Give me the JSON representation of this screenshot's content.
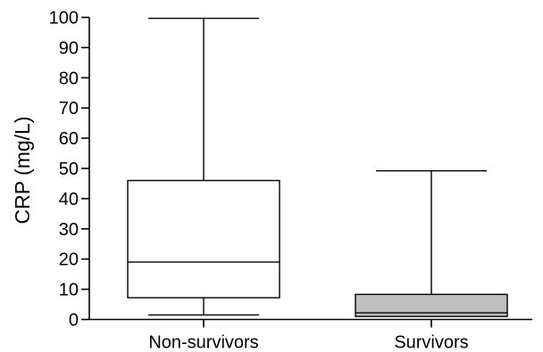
{
  "chart_data": {
    "type": "box",
    "title": "",
    "xlabel": "",
    "ylabel": "CRP (mg/L)",
    "ylim": [
      0,
      100
    ],
    "yticks": [
      0,
      10,
      20,
      30,
      40,
      50,
      60,
      70,
      80,
      90,
      100
    ],
    "ytick_labels": [
      "0",
      "10",
      "20",
      "30",
      "40",
      "50",
      "60",
      "70",
      "80",
      "90",
      "100"
    ],
    "grid": false,
    "categories": [
      "Non-survivors",
      "Survivors"
    ],
    "boxes": [
      {
        "category": "Non-survivors",
        "min": 1.5,
        "q1": 7.2,
        "median": 19,
        "q3": 46,
        "max": 99.7,
        "fill": "#ffffff"
      },
      {
        "category": "Survivors",
        "min": 1,
        "q1": 1,
        "median": 2.2,
        "q3": 8.3,
        "max": 49.2,
        "fill": "#bfbfbf"
      }
    ]
  }
}
